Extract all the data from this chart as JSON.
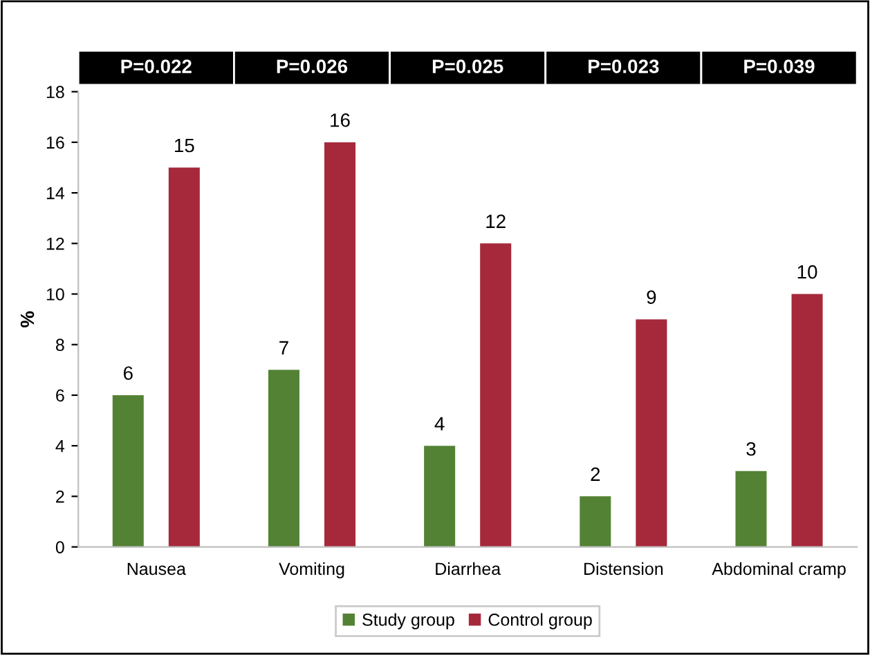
{
  "chart_data": {
    "type": "bar",
    "ylabel": "%",
    "categories": [
      "Nausea",
      "Vomiting",
      "Diarrhea",
      "Distension",
      "Abdominal cramp"
    ],
    "series": [
      {
        "name": "Study group",
        "color": "#548235",
        "values": [
          6,
          7,
          4,
          2,
          3
        ]
      },
      {
        "name": "Control group",
        "color": "#a5293b",
        "values": [
          15,
          16,
          12,
          9,
          10
        ]
      }
    ],
    "annotations": [
      "P=0.022",
      "P=0.026",
      "P=0.025",
      "P=0.023",
      "P=0.039"
    ],
    "ylim": [
      0,
      18
    ],
    "yticks": [
      0,
      2,
      4,
      6,
      8,
      10,
      12,
      14,
      16,
      18
    ],
    "data_labels": true,
    "legend": "bottom",
    "grid": false
  }
}
